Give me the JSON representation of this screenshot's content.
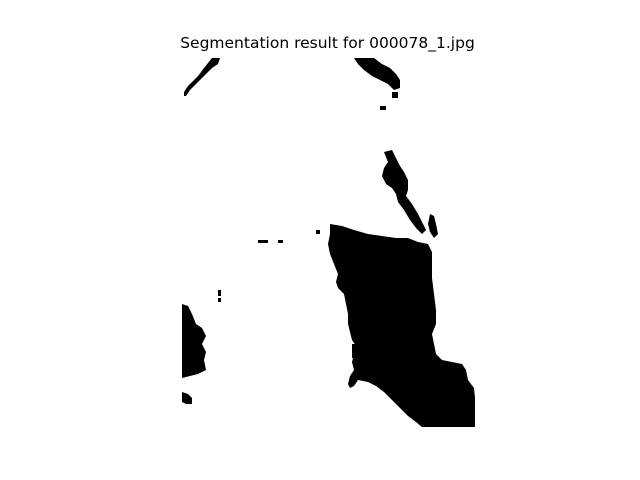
{
  "figure": {
    "title": "Segmentation result for 000078_1.jpg",
    "background_color": "#ffffff",
    "foreground_color": "#000000"
  },
  "image": {
    "description_kind": "binary segmentation mask",
    "colormap": "gray"
  }
}
